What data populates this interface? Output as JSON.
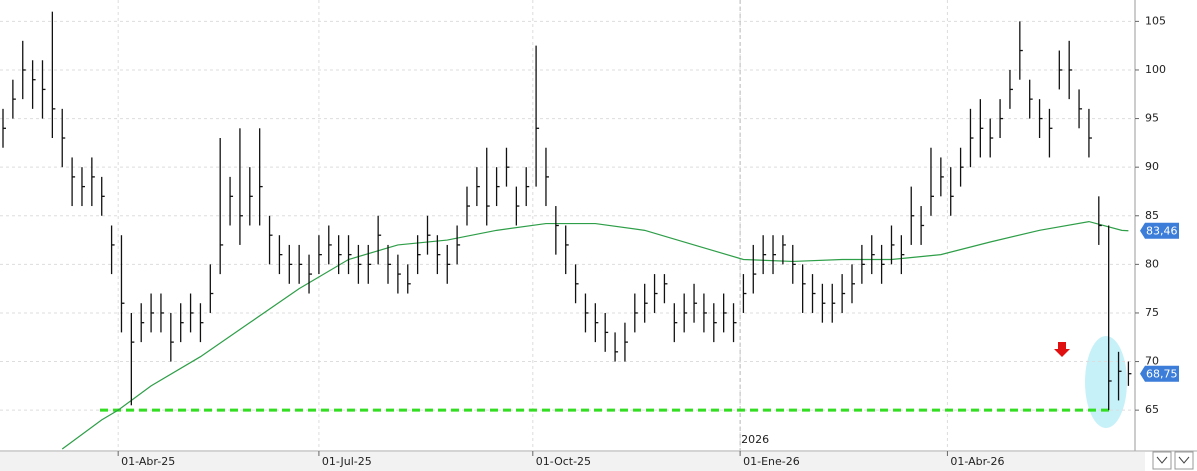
{
  "chart_data": {
    "type": "ohlc",
    "x": [
      0,
      3,
      6,
      9,
      12,
      15,
      18,
      21,
      24,
      27,
      30,
      33,
      36,
      39,
      42,
      45,
      48,
      51,
      54,
      57,
      60,
      63,
      66,
      69,
      72,
      75,
      78,
      81,
      84,
      87,
      90,
      93,
      96,
      99,
      102,
      105,
      108,
      111,
      114,
      117,
      120,
      123,
      126,
      129,
      132,
      135,
      138,
      141,
      144,
      147,
      150,
      153,
      156,
      159,
      162,
      165,
      168,
      171,
      174,
      177,
      180,
      183,
      186,
      189,
      192,
      195,
      198,
      201,
      204,
      207,
      210,
      213,
      216,
      219,
      222,
      225,
      228,
      231,
      234,
      237,
      240,
      243,
      246,
      249,
      252,
      255,
      258,
      261,
      264,
      267,
      270,
      273,
      276,
      279,
      282,
      285,
      288,
      291,
      294,
      297,
      300,
      303,
      306,
      309,
      312,
      315,
      318,
      321,
      324,
      327,
      330,
      333,
      336,
      339,
      342
    ],
    "high": [
      96,
      99,
      103,
      101,
      101,
      106,
      96,
      91,
      90,
      91,
      89,
      84,
      83,
      75,
      76,
      77,
      77,
      75,
      76,
      77,
      76,
      80,
      93,
      89,
      94,
      90,
      94,
      85,
      83,
      82,
      82,
      81,
      83,
      84,
      83,
      83,
      82,
      82,
      85,
      82,
      81,
      80,
      83,
      85,
      83,
      82,
      84,
      88,
      90,
      92,
      90,
      92,
      88,
      90,
      102.5,
      92,
      86,
      84,
      80,
      77,
      76,
      75,
      73,
      74,
      77,
      78,
      79,
      79,
      76,
      77,
      78,
      77,
      76,
      77,
      76,
      79,
      82,
      83,
      83,
      83,
      82,
      80,
      79,
      78,
      78,
      79,
      80,
      82,
      83,
      82,
      84,
      83,
      88,
      86,
      92,
      91,
      90,
      92,
      96,
      97,
      95,
      97,
      100,
      105,
      99,
      97,
      96,
      102,
      103,
      98,
      96,
      87,
      84,
      71,
      70
    ],
    "low": [
      92,
      95,
      97,
      96,
      95,
      93,
      90,
      86,
      86,
      86,
      85,
      79,
      73,
      65.5,
      72,
      73,
      73,
      70,
      72,
      73,
      72,
      75,
      79,
      84,
      82,
      84,
      84,
      80,
      79,
      78,
      78,
      77,
      79,
      80,
      79,
      79,
      78,
      78,
      80,
      78,
      77,
      77,
      79,
      81,
      79,
      78,
      80,
      84,
      86,
      84,
      86,
      88,
      84,
      86,
      88,
      86,
      81,
      79,
      76,
      73,
      72,
      71,
      70,
      70,
      73,
      74,
      75,
      76,
      72,
      73,
      74,
      73,
      72,
      73,
      72,
      75,
      77,
      79,
      79,
      80,
      78,
      75,
      75,
      74,
      74,
      75,
      76,
      78,
      79,
      78,
      80,
      79,
      82,
      82,
      85,
      87,
      85,
      88,
      90,
      91,
      91,
      93,
      96,
      99,
      95,
      93,
      91,
      98,
      97,
      94,
      91,
      82,
      65,
      66,
      67.5
    ],
    "close": [
      94,
      97,
      100,
      99,
      98,
      96,
      93,
      89,
      88,
      89,
      87,
      82,
      76,
      72,
      74,
      75,
      75,
      72,
      74,
      75,
      74,
      77,
      82,
      87,
      85,
      87,
      88,
      83,
      81,
      80,
      80,
      79,
      81,
      82,
      81,
      81,
      80,
      80,
      83,
      80,
      79,
      78,
      81,
      83,
      81,
      80,
      82,
      86,
      88,
      86,
      88,
      90,
      86,
      88,
      94,
      89,
      84,
      82,
      78,
      75,
      74,
      73,
      71,
      72,
      75,
      76,
      77,
      78,
      74,
      75,
      76,
      75,
      74,
      75,
      74,
      77,
      79,
      81,
      81,
      82,
      80,
      78,
      77,
      76,
      76,
      77,
      78,
      80,
      81,
      80,
      82,
      81,
      85,
      84,
      87,
      89,
      87,
      90,
      93,
      94,
      93,
      95,
      98,
      102,
      97,
      95,
      94,
      100,
      100,
      96,
      93,
      84,
      68,
      69,
      68.75
    ],
    "bar_color": "#111111",
    "moving_average": {
      "color": "#2e9e48",
      "x": [
        18,
        30,
        35,
        45,
        60,
        75,
        90,
        105,
        120,
        135,
        150,
        165,
        180,
        195,
        210,
        225,
        240,
        255,
        270,
        285,
        300,
        315,
        330,
        340,
        342
      ],
      "values": [
        61,
        64,
        65,
        67.5,
        70.5,
        74,
        77.5,
        80.5,
        82,
        82.5,
        83.5,
        84.2,
        84.2,
        83.5,
        82,
        80.5,
        80.3,
        80.5,
        80.5,
        81,
        82.3,
        83.5,
        84.4,
        83.5,
        83.46
      ],
      "value_label": "83,46"
    },
    "last_price": {
      "value": 68.75,
      "label": "68,75"
    },
    "tag_color": "#3b7dd8",
    "support_line": {
      "value": 65,
      "color": "#33dd22"
    },
    "xlim": [
      0,
      344
    ],
    "ylim": [
      60.9,
      107.2
    ],
    "yticks": [
      65,
      70,
      75,
      80,
      85,
      90,
      95,
      100,
      105
    ],
    "xticks": [
      {
        "value": 35,
        "label": "01-Abr-25"
      },
      {
        "value": 96,
        "label": "01-Jul-25"
      },
      {
        "value": 161,
        "label": "01-Oct-25"
      },
      {
        "value": 224,
        "label": "01-Ene-26"
      },
      {
        "value": 287,
        "label": "01-Abr-26"
      }
    ],
    "year_marker": {
      "value": 224,
      "label": "2026"
    },
    "grid": true
  }
}
